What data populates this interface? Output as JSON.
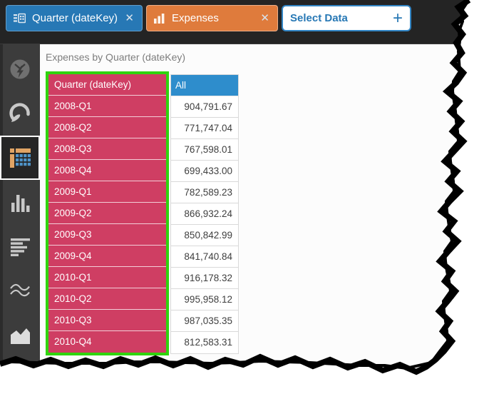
{
  "icons": {
    "close": "✕",
    "plus": "+"
  },
  "colors": {
    "accent_blue": "#2778b5",
    "accent_orange": "#df7b3c",
    "header_blue": "#2e8dcc",
    "crimson": "#cf3e63",
    "selection_green": "#2fd40e"
  },
  "toolbar": {
    "pills": [
      {
        "label": "Quarter (dateKey)",
        "icon": "field-grid-icon",
        "type": "row-field"
      },
      {
        "label": "Expenses",
        "icon": "bar-chart-icon",
        "type": "value-field"
      },
      {
        "label": "Select Data",
        "icon": "plus-icon",
        "type": "add-data"
      }
    ]
  },
  "sidebar": {
    "items": [
      {
        "name": "auto-insights",
        "disabled": true,
        "selected": false
      },
      {
        "name": "gauge",
        "disabled": false,
        "selected": false
      },
      {
        "name": "pivot-grid",
        "disabled": false,
        "selected": true
      },
      {
        "name": "column-chart",
        "disabled": false,
        "selected": false
      },
      {
        "name": "bar-chart",
        "disabled": false,
        "selected": false
      },
      {
        "name": "line-chart",
        "disabled": false,
        "selected": false
      },
      {
        "name": "area-chart",
        "disabled": false,
        "selected": false
      }
    ]
  },
  "main": {
    "title": "Expenses by Quarter (dateKey)",
    "table": {
      "key_header": "Quarter (dateKey)",
      "value_header": "All",
      "rows": [
        {
          "key": "2008-Q1",
          "value": "904,791.67"
        },
        {
          "key": "2008-Q2",
          "value": "771,747.04"
        },
        {
          "key": "2008-Q3",
          "value": "767,598.01"
        },
        {
          "key": "2008-Q4",
          "value": "699,433.00"
        },
        {
          "key": "2009-Q1",
          "value": "782,589.23"
        },
        {
          "key": "2009-Q2",
          "value": "866,932.24"
        },
        {
          "key": "2009-Q3",
          "value": "850,842.99"
        },
        {
          "key": "2009-Q4",
          "value": "841,740.84"
        },
        {
          "key": "2010-Q1",
          "value": "916,178.32"
        },
        {
          "key": "2010-Q2",
          "value": "995,958.12"
        },
        {
          "key": "2010-Q3",
          "value": "987,035.35"
        },
        {
          "key": "2010-Q4",
          "value": "812,583.31"
        }
      ]
    }
  }
}
